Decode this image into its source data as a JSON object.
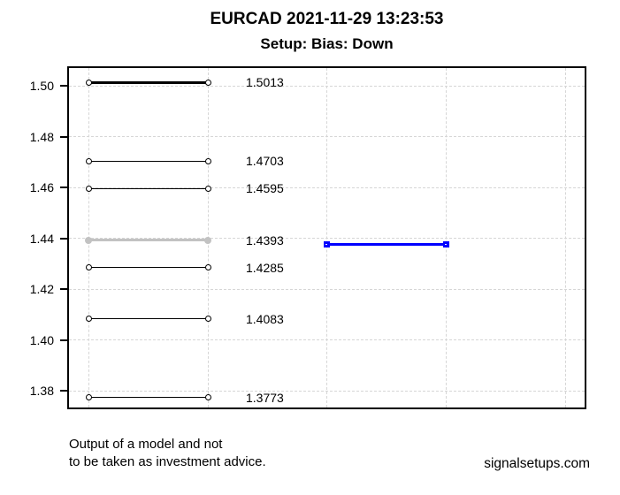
{
  "header": {
    "title": "EURCAD 2021-11-29 13:23:53",
    "subtitle": "Setup: Bias: Down"
  },
  "footer": {
    "disclaimer_line1": "Output of a model and not",
    "disclaimer_line2": "to be taken as investment advice.",
    "website": "signalsetups.com"
  },
  "colors": {
    "level": "#000000",
    "highlighted_level": "#c2c2c2",
    "signal": "#0000ff",
    "grid": "#d6d6d6",
    "text": "#000000",
    "background": "#ffffff"
  },
  "chart_data": {
    "type": "line",
    "title": "EURCAD 2021-11-29 13:23:53",
    "subtitle": "Setup: Bias: Down",
    "ylabel": "",
    "xlabel": "",
    "ylim": [
      1.3734,
      1.507
    ],
    "grid": true,
    "legend": "none",
    "x_axis": {
      "tick_labels_shown": false,
      "n_vertical_gridlines": 5
    },
    "y_ticks": [
      {
        "label": "1.50",
        "value": 1.5
      },
      {
        "label": "1.48",
        "value": 1.48
      },
      {
        "label": "1.46",
        "value": 1.46
      },
      {
        "label": "1.44",
        "value": 1.44
      },
      {
        "label": "1.42",
        "value": 1.42
      },
      {
        "label": "1.40",
        "value": 1.4
      },
      {
        "label": "1.38",
        "value": 1.38
      }
    ],
    "levels": [
      {
        "label": "1.5013",
        "value": 1.5013,
        "color": "#000000",
        "line_width": 2.5,
        "marker": "open-circle",
        "role": "level"
      },
      {
        "label": "1.4703",
        "value": 1.4703,
        "color": "#000000",
        "line_width": 1.4,
        "marker": "open-circle",
        "role": "level"
      },
      {
        "label": "1.4595",
        "value": 1.4595,
        "color": "#000000",
        "line_width": 1.4,
        "marker": "open-circle",
        "role": "level"
      },
      {
        "label": "1.4393",
        "value": 1.4393,
        "color": "#c2c2c2",
        "line_width": 3,
        "marker": "filled-circle",
        "role": "highlighted-level"
      },
      {
        "label": "1.4285",
        "value": 1.4285,
        "color": "#000000",
        "line_width": 1.4,
        "marker": "open-circle",
        "role": "level"
      },
      {
        "label": "1.4083",
        "value": 1.4083,
        "color": "#000000",
        "line_width": 1.4,
        "marker": "open-circle",
        "role": "level"
      },
      {
        "label": "1.3773",
        "value": 1.3773,
        "color": "#000000",
        "line_width": 1.4,
        "marker": "open-circle",
        "role": "level"
      }
    ],
    "signal_line": {
      "label": "",
      "value": 1.4374,
      "color": "#0000ff",
      "line_width": 3,
      "marker": "square",
      "role": "current-signal"
    }
  }
}
